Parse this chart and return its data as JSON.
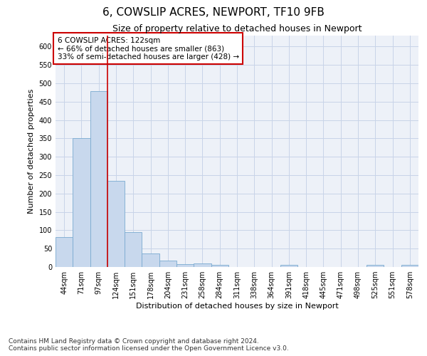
{
  "title": "6, COWSLIP ACRES, NEWPORT, TF10 9FB",
  "subtitle": "Size of property relative to detached houses in Newport",
  "xlabel": "Distribution of detached houses by size in Newport",
  "ylabel": "Number of detached properties",
  "footer_line1": "Contains HM Land Registry data © Crown copyright and database right 2024.",
  "footer_line2": "Contains public sector information licensed under the Open Government Licence v3.0.",
  "annotation_title": "6 COWSLIP ACRES: 122sqm",
  "annotation_line2": "← 66% of detached houses are smaller (863)",
  "annotation_line3": "33% of semi-detached houses are larger (428) →",
  "bar_color": "#c8d8ed",
  "bar_edge_color": "#7aaad0",
  "ref_line_color": "#cc0000",
  "categories": [
    "44sqm",
    "71sqm",
    "97sqm",
    "124sqm",
    "151sqm",
    "178sqm",
    "204sqm",
    "231sqm",
    "258sqm",
    "284sqm",
    "311sqm",
    "338sqm",
    "364sqm",
    "391sqm",
    "418sqm",
    "445sqm",
    "471sqm",
    "498sqm",
    "525sqm",
    "551sqm",
    "578sqm"
  ],
  "values": [
    82,
    350,
    478,
    235,
    95,
    37,
    17,
    8,
    9,
    6,
    0,
    0,
    0,
    6,
    0,
    0,
    0,
    0,
    5,
    0,
    5
  ],
  "ylim": [
    0,
    630
  ],
  "yticks": [
    0,
    50,
    100,
    150,
    200,
    250,
    300,
    350,
    400,
    450,
    500,
    550,
    600
  ],
  "grid_color": "#c8d4e8",
  "bg_color": "#edf1f8",
  "title_fontsize": 11,
  "subtitle_fontsize": 9,
  "axis_label_fontsize": 8,
  "tick_fontsize": 7,
  "annotation_fontsize": 7.5,
  "footer_fontsize": 6.5
}
